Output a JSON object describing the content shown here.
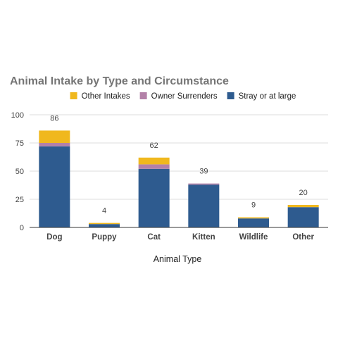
{
  "chart_data": {
    "type": "bar",
    "stacked": true,
    "title": "Animal Intake by Type and Circumstance",
    "xlabel": "Animal Type",
    "ylabel": "",
    "ylim": [
      0,
      100
    ],
    "yticks": [
      0,
      25,
      50,
      75,
      100
    ],
    "grid": true,
    "legend_position": "top",
    "categories": [
      "Dog",
      "Puppy",
      "Cat",
      "Kitten",
      "Wildlife",
      "Other"
    ],
    "totals": [
      86,
      4,
      62,
      39,
      9,
      20
    ],
    "series": [
      {
        "name": "Stray or at large",
        "color": "#2e5b8f",
        "values": [
          72,
          3,
          52,
          38,
          8,
          18
        ]
      },
      {
        "name": "Owner Surrenders",
        "color": "#b381a8",
        "values": [
          3,
          0,
          4,
          1,
          0,
          0
        ]
      },
      {
        "name": "Other Intakes",
        "color": "#f0b81e",
        "values": [
          11,
          1,
          6,
          0,
          1,
          2
        ]
      }
    ],
    "legend_order": [
      "Other Intakes",
      "Owner Surrenders",
      "Stray or at large"
    ]
  }
}
